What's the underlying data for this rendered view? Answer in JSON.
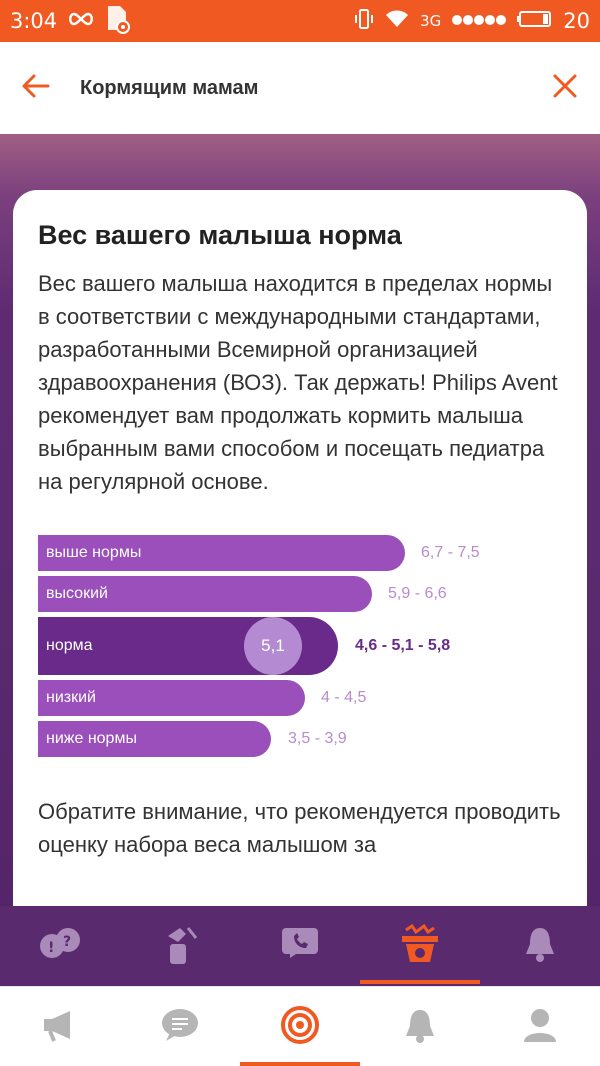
{
  "status_bar": {
    "time": "3:04",
    "network": "3G",
    "battery": "20",
    "icons": [
      "infinity-icon",
      "sim-settings-icon",
      "vibrate-icon",
      "wifi-icon",
      "signal-icon",
      "battery-icon"
    ]
  },
  "app_bar": {
    "title": "Кормящим мамам",
    "back_icon": "back-arrow-icon",
    "close_icon": "close-icon",
    "accent": "#f05a22"
  },
  "card": {
    "title": "Вес вашего малыша норма",
    "body": "Вес вашего малыша находится в пределах нормы в соответствии с международными стандартами, разработанными Всемирной организацией здравоохранения (ВОЗ). Так держать! Philips Avent рекомендует вам продолжать кормить малыша выбранным вами способом и посещать педиатра на регулярной основе.",
    "note": "Обратите внимание, что рекомендуется проводить оценку набора веса малышом за"
  },
  "weight_scale": {
    "rows": [
      {
        "label": "выше нормы",
        "range": "6,7 - 7,5",
        "level": 0.71
      },
      {
        "label": "высокий",
        "range": "5,9 - 6,6",
        "level": 0.65
      },
      {
        "label": "норма",
        "range": "4,6 - 5,1 - 5,8",
        "level": 0.58,
        "highlight": true
      },
      {
        "label": "низкий",
        "range": "4 - 4,5",
        "level": 0.52
      },
      {
        "label": "ниже нормы",
        "range": "3,5 - 3,9",
        "level": 0.45
      }
    ],
    "current_value": "5,1",
    "current_position": 0.45,
    "colors": {
      "bar": "#9b4fba",
      "highlight": "#6a2a8a",
      "marker": "#b48bd2",
      "range": "#b98ad0"
    }
  },
  "section_tabs": {
    "active_index": 3,
    "items": [
      {
        "icon": "faq-icon"
      },
      {
        "icon": "breast-pump-icon"
      },
      {
        "icon": "call-support-icon"
      },
      {
        "icon": "weight-scale-icon"
      },
      {
        "icon": "bell-icon"
      }
    ]
  },
  "bottom_nav": {
    "active_index": 2,
    "items": [
      {
        "icon": "megaphone-icon"
      },
      {
        "icon": "chat-icon"
      },
      {
        "icon": "target-icon"
      },
      {
        "icon": "notification-bell-icon"
      },
      {
        "icon": "profile-icon"
      }
    ]
  }
}
